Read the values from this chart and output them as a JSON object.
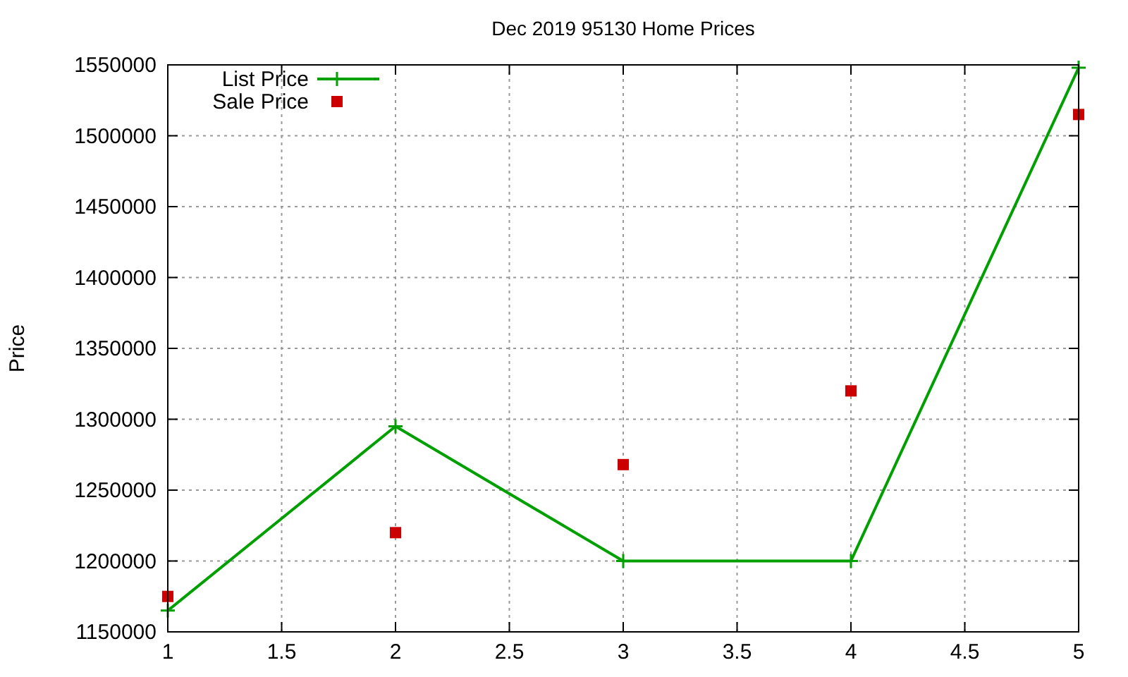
{
  "chart_data": {
    "type": "line",
    "title": "Dec 2019 95130 Home Prices",
    "ylabel": "Price",
    "x": [
      1,
      2,
      3,
      4,
      5
    ],
    "series": [
      {
        "name": "List Price",
        "type": "line",
        "color": "#00a000",
        "marker": "cross",
        "values": [
          1165000,
          1295000,
          1200000,
          1200000,
          1548000
        ]
      },
      {
        "name": "Sale Price",
        "type": "scatter",
        "color": "#cc0000",
        "marker": "square",
        "values": [
          1175000,
          1220000,
          1268000,
          1320000,
          1515000
        ]
      }
    ],
    "xlim": [
      1,
      5
    ],
    "xticks": [
      1,
      1.5,
      2,
      2.5,
      3,
      3.5,
      4,
      4.5,
      5
    ],
    "ylim": [
      1150000,
      1550000
    ],
    "yticks": [
      1150000,
      1200000,
      1250000,
      1300000,
      1350000,
      1400000,
      1450000,
      1500000,
      1550000
    ],
    "grid": true,
    "legend": "top left"
  }
}
